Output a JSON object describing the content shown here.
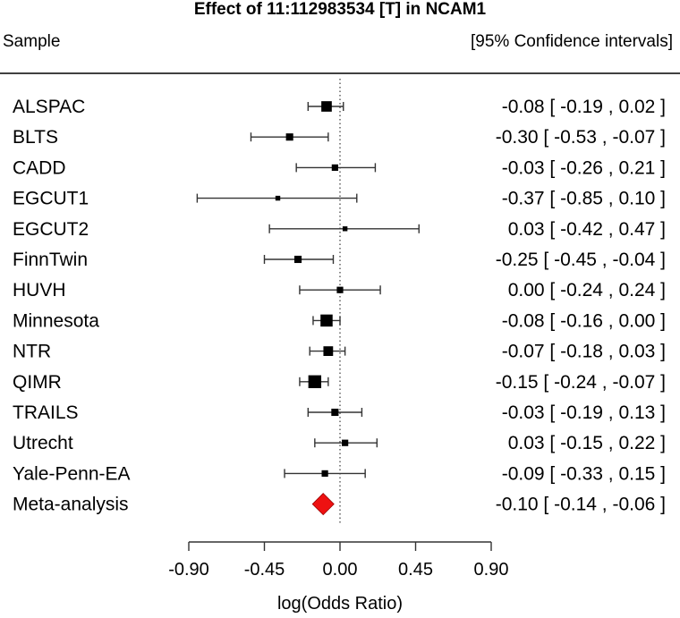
{
  "chart_data": {
    "type": "forest",
    "title": "Effect of 11:112983534 [T] in NCAM1",
    "header_left": "Sample",
    "header_right": "[95% Confidence intervals]",
    "xlabel": "log(Odds Ratio)",
    "xlim": [
      -0.9,
      0.9
    ],
    "xticks": [
      -0.9,
      -0.45,
      0.0,
      0.45,
      0.9
    ],
    "xtick_labels": [
      "-0.90",
      "-0.45",
      "0.00",
      "0.45",
      "0.90"
    ],
    "reference_line": 0.0,
    "studies": [
      {
        "name": "ALSPAC",
        "estimate": -0.08,
        "lower": -0.19,
        "upper": 0.02,
        "label": "-0.08 [ -0.19 ,  0.02 ]",
        "weight": 1.3
      },
      {
        "name": "BLTS",
        "estimate": -0.3,
        "lower": -0.53,
        "upper": -0.07,
        "label": "-0.30 [ -0.53 , -0.07 ]",
        "weight": 0.9
      },
      {
        "name": "CADD",
        "estimate": -0.03,
        "lower": -0.26,
        "upper": 0.21,
        "label": "-0.03 [ -0.26 ,  0.21 ]",
        "weight": 0.8
      },
      {
        "name": "EGCUT1",
        "estimate": -0.37,
        "lower": -0.85,
        "upper": 0.1,
        "label": "-0.37 [ -0.85 ,  0.10 ]",
        "weight": 0.6
      },
      {
        "name": "EGCUT2",
        "estimate": 0.03,
        "lower": -0.42,
        "upper": 0.47,
        "label": "0.03 [ -0.42 ,  0.47 ]",
        "weight": 0.6
      },
      {
        "name": "FinnTwin",
        "estimate": -0.25,
        "lower": -0.45,
        "upper": -0.04,
        "label": "-0.25 [ -0.45 , -0.04 ]",
        "weight": 0.9
      },
      {
        "name": "HUVH",
        "estimate": 0.0,
        "lower": -0.24,
        "upper": 0.24,
        "label": "0.00 [ -0.24 ,  0.24 ]",
        "weight": 0.8
      },
      {
        "name": "Minnesota",
        "estimate": -0.08,
        "lower": -0.16,
        "upper": 0.0,
        "label": "-0.08 [ -0.16 ,  0.00 ]",
        "weight": 1.5
      },
      {
        "name": "NTR",
        "estimate": -0.07,
        "lower": -0.18,
        "upper": 0.03,
        "label": "-0.07 [ -0.18 ,  0.03 ]",
        "weight": 1.2
      },
      {
        "name": "QIMR",
        "estimate": -0.15,
        "lower": -0.24,
        "upper": -0.07,
        "label": "-0.15 [ -0.24 , -0.07 ]",
        "weight": 1.6
      },
      {
        "name": "TRAILS",
        "estimate": -0.03,
        "lower": -0.19,
        "upper": 0.13,
        "label": "-0.03 [ -0.19 ,  0.13 ]",
        "weight": 0.9
      },
      {
        "name": "Utrecht",
        "estimate": 0.03,
        "lower": -0.15,
        "upper": 0.22,
        "label": "0.03 [ -0.15 ,  0.22 ]",
        "weight": 0.8
      },
      {
        "name": "Yale-Penn-EA",
        "estimate": -0.09,
        "lower": -0.33,
        "upper": 0.15,
        "label": "-0.09 [ -0.33 ,  0.15 ]",
        "weight": 0.8
      }
    ],
    "summary": {
      "name": "Meta-analysis",
      "estimate": -0.1,
      "lower": -0.14,
      "upper": -0.06,
      "label": "-0.10 [ -0.14 , -0.06 ]",
      "color": "#ee1111"
    }
  }
}
